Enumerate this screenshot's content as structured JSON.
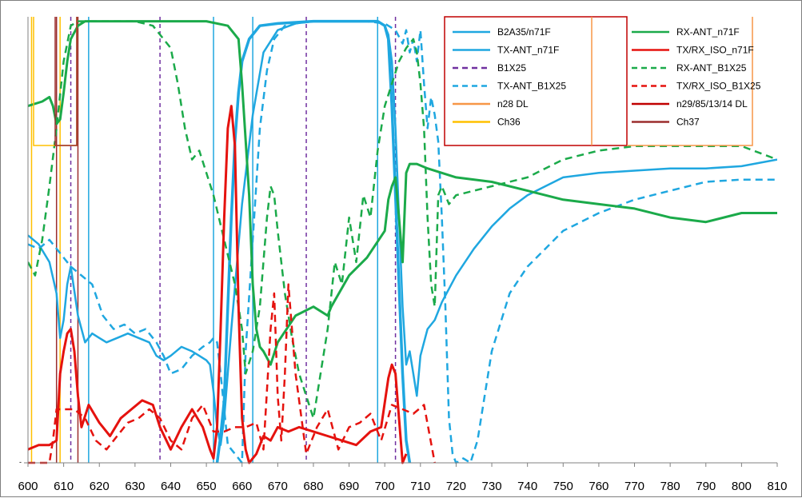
{
  "chart_data": {
    "type": "line",
    "title": "",
    "xlabel": "",
    "ylabel": "",
    "xlim": [
      600,
      810
    ],
    "ylim": [
      0,
      1
    ],
    "x_ticks": [
      600,
      610,
      620,
      630,
      640,
      650,
      660,
      670,
      680,
      690,
      700,
      710,
      720,
      730,
      740,
      750,
      760,
      770,
      780,
      790,
      800,
      810
    ],
    "y_tick_label": "-",
    "grid": false,
    "legend_placement": "top-right",
    "series": [
      {
        "name": "B2A35/n71F",
        "color": "#1FA7E0",
        "dash": "solid",
        "width": 2.5,
        "x": [
          600,
          603,
          606,
          608,
          609,
          610,
          611,
          612,
          614,
          616,
          618,
          620,
          622,
          625,
          628,
          631,
          634,
          636,
          638,
          640,
          643,
          646,
          648,
          650,
          651,
          652,
          653,
          654,
          655,
          657,
          660,
          663,
          666,
          670,
          675,
          680,
          685,
          690,
          695,
          698,
          700,
          701,
          702,
          703,
          704,
          705,
          706,
          707,
          708,
          709,
          710,
          712,
          714,
          716,
          720,
          725,
          730,
          735,
          740,
          745,
          750,
          760,
          770,
          780,
          790,
          800,
          810
        ],
        "y": [
          0.51,
          0.49,
          0.45,
          0.38,
          0.28,
          0.32,
          0.4,
          0.44,
          0.33,
          0.27,
          0.29,
          0.28,
          0.27,
          0.28,
          0.29,
          0.28,
          0.27,
          0.24,
          0.23,
          0.24,
          0.26,
          0.25,
          0.24,
          0.23,
          0.22,
          0.16,
          0.08,
          0.04,
          0.1,
          0.3,
          0.58,
          0.78,
          0.92,
          0.97,
          0.985,
          0.99,
          0.99,
          0.99,
          0.99,
          0.99,
          0.98,
          0.96,
          0.9,
          0.75,
          0.55,
          0.35,
          0.22,
          0.25,
          0.2,
          0.15,
          0.24,
          0.3,
          0.32,
          0.36,
          0.42,
          0.48,
          0.53,
          0.57,
          0.6,
          0.62,
          0.64,
          0.65,
          0.655,
          0.66,
          0.66,
          0.665,
          0.68
        ]
      },
      {
        "name": "TX-ANT_n71F",
        "color": "#1FA7E0",
        "dash": "solid",
        "width": 3.5,
        "x": [
          653,
          654,
          655,
          656,
          657,
          658,
          659,
          660,
          662,
          665,
          670,
          680,
          690,
          698,
          700,
          701,
          702,
          703,
          704,
          705,
          706,
          707
        ],
        "y": [
          0.0,
          0.06,
          0.14,
          0.35,
          0.55,
          0.72,
          0.83,
          0.9,
          0.95,
          0.98,
          0.985,
          0.99,
          0.99,
          0.99,
          0.98,
          0.95,
          0.8,
          0.6,
          0.4,
          0.2,
          0.05,
          0.0
        ]
      },
      {
        "name": "B1X25",
        "color": "#7030A0",
        "dash": "dash",
        "width": 2,
        "x": [],
        "y": []
      },
      {
        "name": "TX-ANT_B1X25",
        "color": "#1FA7E0",
        "dash": "dash",
        "width": 2.5,
        "x": [
          600,
          603,
          606,
          609,
          612,
          615,
          618,
          621,
          624,
          627,
          630,
          633,
          636,
          638,
          640,
          643,
          646,
          649,
          651,
          652,
          653,
          654,
          655,
          656,
          658,
          660,
          661,
          663,
          665,
          667,
          669,
          672,
          675,
          680,
          685,
          690,
          695,
          700,
          703,
          705,
          706,
          707,
          708,
          709,
          710,
          711,
          712,
          713,
          714,
          715,
          716,
          717,
          718,
          719,
          720,
          722,
          724,
          726,
          730,
          735,
          740,
          745,
          750,
          760,
          770,
          780,
          790,
          800,
          810
        ],
        "y": [
          0.49,
          0.48,
          0.5,
          0.47,
          0.44,
          0.42,
          0.4,
          0.33,
          0.3,
          0.31,
          0.29,
          0.3,
          0.27,
          0.24,
          0.2,
          0.21,
          0.24,
          0.26,
          0.27,
          0.28,
          0.27,
          0.2,
          0.12,
          0.04,
          0.02,
          0.0,
          0.25,
          0.5,
          0.75,
          0.88,
          0.95,
          0.98,
          0.985,
          0.99,
          0.99,
          0.99,
          0.99,
          0.985,
          0.97,
          0.94,
          0.97,
          0.92,
          0.95,
          0.9,
          0.97,
          0.85,
          0.75,
          0.82,
          0.78,
          0.72,
          0.55,
          0.35,
          0.1,
          0.02,
          0.0,
          0.01,
          0.0,
          0.05,
          0.25,
          0.38,
          0.44,
          0.48,
          0.52,
          0.56,
          0.59,
          0.61,
          0.63,
          0.635,
          0.635
        ]
      },
      {
        "name": "n28 DL",
        "color": "#F79646",
        "dash": "solid",
        "width": 1.5,
        "x": [],
        "y": []
      },
      {
        "name": "Ch36",
        "color": "#FFC000",
        "dash": "solid",
        "width": 1.5,
        "x": [],
        "y": []
      },
      {
        "name": "RX-ANT_n71F",
        "color": "#1BAA4A",
        "dash": "solid",
        "width": 3,
        "x": [
          600,
          604,
          606,
          607,
          608,
          609,
          610,
          611,
          612,
          614,
          616,
          620,
          640,
          650,
          656,
          659,
          660,
          662,
          663,
          664,
          665,
          666,
          668,
          670,
          675,
          680,
          684,
          685,
          690,
          695,
          700,
          701,
          702,
          703,
          704,
          705,
          706,
          707,
          709,
          712,
          720,
          730,
          740,
          750,
          760,
          770,
          780,
          790,
          800,
          810
        ],
        "y": [
          0.8,
          0.81,
          0.82,
          0.8,
          0.76,
          0.77,
          0.83,
          0.9,
          0.95,
          0.98,
          0.99,
          0.99,
          0.99,
          0.99,
          0.98,
          0.95,
          0.85,
          0.6,
          0.4,
          0.3,
          0.26,
          0.25,
          0.22,
          0.27,
          0.33,
          0.35,
          0.33,
          0.35,
          0.42,
          0.46,
          0.52,
          0.59,
          0.62,
          0.64,
          0.55,
          0.45,
          0.65,
          0.67,
          0.67,
          0.66,
          0.64,
          0.63,
          0.61,
          0.59,
          0.58,
          0.57,
          0.55,
          0.54,
          0.56,
          0.56
        ]
      },
      {
        "name": "TX/RX_ISO_n71F",
        "color": "#E5120E",
        "dash": "solid",
        "width": 3,
        "x": [
          600,
          603,
          606,
          608,
          609,
          610,
          611,
          612,
          613,
          614,
          615,
          617,
          620,
          623,
          626,
          629,
          632,
          635,
          637,
          640,
          643,
          646,
          649,
          651,
          652,
          653,
          654,
          655,
          656,
          657,
          658,
          659,
          660,
          661,
          662,
          664,
          666,
          668,
          670,
          673,
          676,
          680,
          684,
          688,
          692,
          696,
          699,
          701,
          702,
          703,
          704,
          705,
          706
        ],
        "y": [
          0.03,
          0.04,
          0.04,
          0.05,
          0.2,
          0.25,
          0.29,
          0.3,
          0.25,
          0.15,
          0.08,
          0.13,
          0.09,
          0.06,
          0.1,
          0.12,
          0.14,
          0.13,
          0.08,
          0.03,
          0.08,
          0.12,
          0.08,
          0.03,
          0.01,
          0.08,
          0.3,
          0.55,
          0.75,
          0.8,
          0.71,
          0.35,
          0.1,
          0.03,
          0.0,
          0.02,
          0.06,
          0.05,
          0.08,
          0.07,
          0.08,
          0.07,
          0.06,
          0.05,
          0.04,
          0.07,
          0.08,
          0.19,
          0.22,
          0.2,
          0.1,
          0.0,
          0.02
        ]
      },
      {
        "name": "RX-ANT_B1X25",
        "color": "#1BAA4A",
        "dash": "dash",
        "width": 2.5,
        "x": [
          600,
          602,
          604,
          606,
          608,
          610,
          612,
          614,
          617,
          620,
          625,
          630,
          635,
          640,
          642,
          644,
          646,
          648,
          650,
          652,
          655,
          658,
          660,
          661,
          663,
          665,
          667,
          668,
          669,
          670,
          671,
          672,
          674,
          676,
          678,
          680,
          682,
          684,
          686,
          688,
          690,
          692,
          694,
          696,
          698,
          700,
          702,
          704,
          706,
          708,
          709,
          710,
          711,
          712,
          713,
          714,
          715,
          716,
          718,
          720,
          725,
          730,
          740,
          745,
          750,
          760,
          770,
          780,
          790,
          800,
          810
        ],
        "y": [
          0.45,
          0.42,
          0.5,
          0.62,
          0.75,
          0.9,
          0.98,
          0.99,
          0.99,
          0.99,
          0.99,
          0.99,
          0.98,
          0.93,
          0.85,
          0.75,
          0.68,
          0.7,
          0.65,
          0.6,
          0.5,
          0.4,
          0.3,
          0.2,
          0.25,
          0.35,
          0.55,
          0.62,
          0.6,
          0.52,
          0.45,
          0.38,
          0.28,
          0.2,
          0.15,
          0.1,
          0.2,
          0.3,
          0.45,
          0.4,
          0.55,
          0.45,
          0.6,
          0.55,
          0.7,
          0.8,
          0.85,
          0.9,
          0.93,
          0.95,
          0.92,
          0.85,
          0.75,
          0.55,
          0.4,
          0.35,
          0.6,
          0.62,
          0.58,
          0.6,
          0.61,
          0.62,
          0.64,
          0.66,
          0.68,
          0.7,
          0.71,
          0.71,
          0.71,
          0.71,
          0.68
        ]
      },
      {
        "name": "TX/RX_ISO_B1X25",
        "color": "#E5120E",
        "dash": "dash",
        "width": 2.5,
        "x": [
          600,
          603,
          606,
          607,
          608,
          610,
          613,
          616,
          619,
          622,
          625,
          628,
          631,
          634,
          637,
          640,
          643,
          646,
          649,
          652,
          655,
          658,
          661,
          664,
          666,
          668,
          669,
          670,
          671,
          672,
          673,
          675,
          678,
          681,
          684,
          687,
          690,
          693,
          696,
          699,
          702,
          705,
          708,
          711,
          714
        ],
        "y": [
          0.0,
          0.0,
          0.0,
          0.05,
          0.12,
          0.12,
          0.12,
          0.1,
          0.05,
          0.03,
          0.06,
          0.09,
          0.1,
          0.12,
          0.1,
          0.05,
          0.03,
          0.1,
          0.13,
          0.07,
          0.07,
          0.08,
          0.08,
          0.09,
          0.03,
          0.3,
          0.38,
          0.15,
          0.05,
          0.2,
          0.4,
          0.2,
          0.02,
          0.08,
          0.12,
          0.03,
          0.08,
          0.09,
          0.11,
          0.05,
          0.13,
          0.12,
          0.11,
          0.13,
          0.0
        ]
      },
      {
        "name": "n29/85/13/14 DL",
        "color": "#C00000",
        "dash": "solid",
        "width": 1.5,
        "x": [],
        "y": []
      },
      {
        "name": "Ch37",
        "color": "#9B2D2D",
        "dash": "solid",
        "width": 1.5,
        "x": [],
        "y": []
      }
    ],
    "markers": [
      {
        "series": "B2A35/n71F",
        "x": [
          617,
          652,
          663,
          698
        ],
        "color": "#1FA7E0"
      },
      {
        "series": "B1X25",
        "x": [
          612,
          637,
          678,
          703
        ],
        "color": "#7030A0"
      },
      {
        "series": "Ch36",
        "x": [
          601,
          609
        ],
        "color": "#FFC000"
      },
      {
        "series": "Ch37",
        "x": [
          608,
          614
        ],
        "color": "#9B2D2D"
      }
    ],
    "legend": [
      {
        "label": "B2A35/n71F",
        "color": "#1FA7E0",
        "dash": "solid"
      },
      {
        "label": "TX-ANT_n71F",
        "color": "#1FA7E0",
        "dash": "solid"
      },
      {
        "label": "B1X25",
        "color": "#7030A0",
        "dash": "dash"
      },
      {
        "label": "TX-ANT_B1X25",
        "color": "#1FA7E0",
        "dash": "dash"
      },
      {
        "label": "n28 DL",
        "color": "#F79646",
        "dash": "solid"
      },
      {
        "label": "Ch36",
        "color": "#FFC000",
        "dash": "solid"
      },
      {
        "label": "RX-ANT_n71F",
        "color": "#1BAA4A",
        "dash": "solid"
      },
      {
        "label": "TX/RX_ISO_n71F",
        "color": "#E5120E",
        "dash": "solid"
      },
      {
        "label": "RX-ANT_B1X25",
        "color": "#1BAA4A",
        "dash": "dash"
      },
      {
        "label": "TX/RX_ISO_B1X25",
        "color": "#E5120E",
        "dash": "dash"
      },
      {
        "label": "n29/85/13/14 DL",
        "color": "#C00000",
        "dash": "solid"
      },
      {
        "label": "Ch37",
        "color": "#9B2D2D",
        "dash": "solid"
      }
    ]
  }
}
